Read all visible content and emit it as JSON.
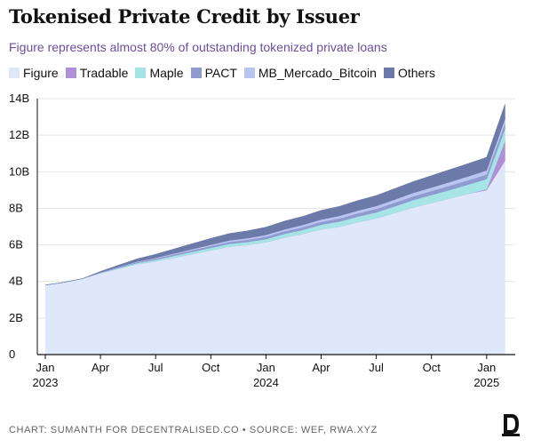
{
  "header": {
    "title": "Tokenised Private Credit by Issuer",
    "subtitle": "Figure represents almost 80% of outstanding tokenized private loans"
  },
  "footer": {
    "source": "CHART: SUMANTH FOR DECENTRALISED.CO • SOURCE: WEF, RWA.XYZ"
  },
  "logo": {
    "icon": "decentralised-logo-icon"
  },
  "chart_data": {
    "type": "area",
    "stacked": true,
    "title": "Tokenised Private Credit by Issuer",
    "subtitle": "Figure represents almost 80% of outstanding tokenized private loans",
    "xlabel": "",
    "ylabel": "",
    "ylim": [
      0,
      14
    ],
    "grid": true,
    "legend_position": "top-left",
    "x": [
      "2023-01",
      "2023-02",
      "2023-03",
      "2023-04",
      "2023-05",
      "2023-06",
      "2023-07",
      "2023-08",
      "2023-09",
      "2023-10",
      "2023-11",
      "2023-12",
      "2024-01",
      "2024-02",
      "2024-03",
      "2024-04",
      "2024-05",
      "2024-06",
      "2024-07",
      "2024-08",
      "2024-09",
      "2024-10",
      "2024-11",
      "2024-12",
      "2025-01",
      "2025-02"
    ],
    "x_ticks": [
      {
        "x": "2023-01",
        "label": "Jan",
        "year": "2023"
      },
      {
        "x": "2023-04",
        "label": "Apr",
        "year": ""
      },
      {
        "x": "2023-07",
        "label": "Jul",
        "year": ""
      },
      {
        "x": "2023-10",
        "label": "Oct",
        "year": ""
      },
      {
        "x": "2024-01",
        "label": "Jan",
        "year": "2024"
      },
      {
        "x": "2024-04",
        "label": "Apr",
        "year": ""
      },
      {
        "x": "2024-07",
        "label": "Jul",
        "year": ""
      },
      {
        "x": "2024-10",
        "label": "Oct",
        "year": ""
      },
      {
        "x": "2025-01",
        "label": "Jan",
        "year": "2025"
      }
    ],
    "y_ticks": [
      {
        "value": 0,
        "label": "0"
      },
      {
        "value": 2,
        "label": "2B"
      },
      {
        "value": 4,
        "label": "4B"
      },
      {
        "value": 6,
        "label": "6B"
      },
      {
        "value": 8,
        "label": "8B"
      },
      {
        "value": 10,
        "label": "10B"
      },
      {
        "value": 12,
        "label": "12B"
      },
      {
        "value": 14,
        "label": "14B"
      }
    ],
    "series": [
      {
        "name": "Figure",
        "color": "#dfe8fb",
        "values": [
          3.8,
          3.95,
          4.15,
          4.45,
          4.7,
          4.95,
          5.1,
          5.3,
          5.5,
          5.7,
          5.9,
          6.0,
          6.15,
          6.4,
          6.6,
          6.85,
          7.0,
          7.25,
          7.45,
          7.75,
          8.05,
          8.3,
          8.55,
          8.8,
          9.0,
          10.6
        ]
      },
      {
        "name": "Tradable",
        "color": "#b08fd6",
        "values": [
          0,
          0,
          0,
          0,
          0,
          0,
          0,
          0,
          0,
          0,
          0,
          0,
          0,
          0,
          0,
          0,
          0,
          0,
          0,
          0,
          0,
          0,
          0,
          0,
          0.05,
          1.1
        ]
      },
      {
        "name": "Maple",
        "color": "#a6e4e6",
        "values": [
          0,
          0,
          0,
          0.02,
          0.04,
          0.06,
          0.08,
          0.1,
          0.12,
          0.14,
          0.15,
          0.16,
          0.17,
          0.2,
          0.22,
          0.25,
          0.28,
          0.3,
          0.33,
          0.36,
          0.4,
          0.43,
          0.46,
          0.5,
          0.55,
          0.65
        ]
      },
      {
        "name": "PACT",
        "color": "#8f9bcf",
        "values": [
          0,
          0,
          0,
          0.02,
          0.04,
          0.05,
          0.07,
          0.08,
          0.09,
          0.1,
          0.11,
          0.12,
          0.13,
          0.14,
          0.15,
          0.16,
          0.17,
          0.18,
          0.19,
          0.2,
          0.21,
          0.22,
          0.23,
          0.24,
          0.25,
          0.3
        ]
      },
      {
        "name": "MB_Mercado_Bitcoin",
        "color": "#b9c4f0",
        "values": [
          0,
          0,
          0,
          0.01,
          0.02,
          0.03,
          0.04,
          0.05,
          0.06,
          0.07,
          0.08,
          0.09,
          0.1,
          0.11,
          0.12,
          0.13,
          0.14,
          0.15,
          0.16,
          0.17,
          0.18,
          0.19,
          0.2,
          0.21,
          0.22,
          0.25
        ]
      },
      {
        "name": "Others",
        "color": "#6b7aa8",
        "values": [
          0,
          0,
          0,
          0.05,
          0.1,
          0.15,
          0.2,
          0.25,
          0.3,
          0.35,
          0.38,
          0.4,
          0.42,
          0.45,
          0.47,
          0.5,
          0.52,
          0.55,
          0.57,
          0.6,
          0.62,
          0.65,
          0.68,
          0.7,
          0.72,
          0.8
        ]
      }
    ]
  }
}
